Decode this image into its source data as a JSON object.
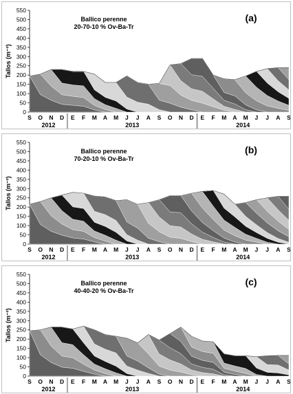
{
  "figure": {
    "background": "#ffffff"
  },
  "chart_data": [
    {
      "type": "area",
      "panel_label": "(a)",
      "title_line1": "Ballico perenne",
      "title_line2": "20-70-10 % Ov-Ba-Tr",
      "ylabel": "Tallos (m⁻²)",
      "ylim": [
        0,
        550
      ],
      "yticks": [
        0,
        50,
        100,
        150,
        200,
        250,
        300,
        350,
        400,
        450,
        500,
        550
      ],
      "months": [
        "S",
        "O",
        "N",
        "D",
        "E",
        "F",
        "M",
        "A",
        "M",
        "J",
        "J",
        "A",
        "S",
        "O",
        "N",
        "D",
        "E",
        "F",
        "M",
        "A",
        "M",
        "J",
        "J",
        "A",
        "S"
      ],
      "years": [
        {
          "label": "2012",
          "start": 0,
          "end": 3
        },
        {
          "label": "2013",
          "start": 4,
          "end": 15
        },
        {
          "label": "2014",
          "start": 16,
          "end": 24
        }
      ],
      "total": [
        195,
        205,
        230,
        230,
        220,
        220,
        205,
        160,
        160,
        195,
        160,
        150,
        155,
        255,
        262,
        290,
        290,
        200,
        180,
        175,
        195,
        220,
        235,
        240,
        240
      ]
    },
    {
      "type": "area",
      "panel_label": "(b)",
      "title_line1": "Ballico perenne",
      "title_line2": "70-20-10 % Ov-Ba-Tr",
      "ylabel": "Tallos (m⁻²)",
      "ylim": [
        0,
        550
      ],
      "yticks": [
        0,
        50,
        100,
        150,
        200,
        250,
        300,
        350,
        400,
        450,
        500,
        550
      ],
      "months": [
        "S",
        "O",
        "N",
        "D",
        "E",
        "F",
        "M",
        "A",
        "M",
        "J",
        "J",
        "A",
        "S",
        "O",
        "N",
        "D",
        "E",
        "F",
        "M",
        "A",
        "M",
        "J",
        "J",
        "A",
        "S"
      ],
      "years": [
        {
          "label": "2012",
          "start": 0,
          "end": 3
        },
        {
          "label": "2013",
          "start": 4,
          "end": 15
        },
        {
          "label": "2014",
          "start": 16,
          "end": 24
        }
      ],
      "total": [
        215,
        230,
        250,
        265,
        280,
        275,
        260,
        255,
        235,
        240,
        215,
        225,
        240,
        262,
        262,
        275,
        285,
        290,
        270,
        215,
        225,
        240,
        250,
        258,
        258
      ]
    },
    {
      "type": "area",
      "panel_label": "(c)",
      "title_line1": "Ballico perenne",
      "title_line2": "40-40-20 % Ov-Ba-Tr",
      "ylabel": "Tallos (m⁻²)",
      "ylim": [
        0,
        550
      ],
      "yticks": [
        0,
        50,
        100,
        150,
        200,
        250,
        300,
        350,
        400,
        450,
        500,
        550
      ],
      "months": [
        "S",
        "O",
        "N",
        "D",
        "E",
        "F",
        "M",
        "A",
        "M",
        "J",
        "J",
        "A",
        "S",
        "O",
        "N",
        "D",
        "E",
        "F",
        "M",
        "A",
        "M",
        "J",
        "J",
        "A",
        "S"
      ],
      "years": [
        {
          "label": "2012",
          "start": 0,
          "end": 3
        },
        {
          "label": "2013",
          "start": 4,
          "end": 15
        },
        {
          "label": "2014",
          "start": 16,
          "end": 24
        }
      ],
      "total": [
        245,
        250,
        265,
        265,
        255,
        270,
        250,
        225,
        215,
        205,
        180,
        225,
        195,
        230,
        265,
        215,
        190,
        185,
        120,
        110,
        110,
        105,
        110,
        112,
        112
      ]
    }
  ]
}
